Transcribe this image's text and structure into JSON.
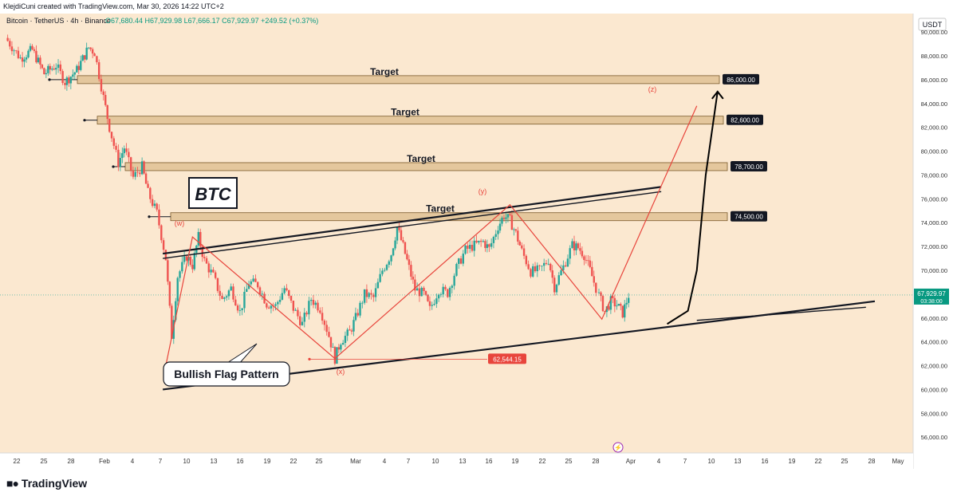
{
  "header": {
    "credit": "KlejdiCuni created with TradingView.com, Mar 30, 2026 14:22 UTC+2",
    "symbol": "Bitcoin · TetherUS · 4h · Binance",
    "ohlc": "O67,680.44 H67,929.98 L67,666.17 C67,929.97 +249.52 (+0.37%)"
  },
  "footer": {
    "brand": "TradingView"
  },
  "chart_data": {
    "type": "candlestick",
    "symbol": "BTCUSDT",
    "timeframe": "4h",
    "currency": "USDT",
    "ylim": [
      55000,
      92000
    ],
    "y_ticks": [
      "56,000.00",
      "58,000.00",
      "60,000.00",
      "62,000.00",
      "64,000.00",
      "66,000.00",
      "68,000.00",
      "70,000.00",
      "72,000.00",
      "74,000.00",
      "76,000.00",
      "78,000.00",
      "80,000.00",
      "82,000.00",
      "84,000.00",
      "86,000.00",
      "88,000.00",
      "90,000.00"
    ],
    "x_ticks": [
      "22",
      "25",
      "28",
      "Feb",
      "4",
      "7",
      "10",
      "13",
      "16",
      "19",
      "22",
      "25",
      "Mar",
      "4",
      "7",
      "10",
      "13",
      "16",
      "19",
      "22",
      "25",
      "28",
      "Apr",
      "4",
      "7",
      "10",
      "13",
      "16",
      "19",
      "22",
      "25",
      "28",
      "May"
    ],
    "last_price": {
      "value": "67,929.97",
      "countdown": "03:38:00",
      "price": 67929.97
    },
    "low_marker": {
      "label": "62,544.15",
      "price": 62544.15
    },
    "target_boxes": [
      {
        "text": "Target",
        "price_label": "86,000.00",
        "price": 86000
      },
      {
        "text": "Target",
        "price_label": "82,600.00",
        "price": 82600
      },
      {
        "text": "Target",
        "price_label": "78,700.00",
        "price": 78700
      },
      {
        "text": "Target",
        "price_label": "74,500.00",
        "price": 74500
      }
    ],
    "wave_labels": [
      "(w)",
      "(x)",
      "(y)",
      "(z)"
    ],
    "annotations": {
      "ticker_box": "BTC",
      "pattern_label": "Bullish Flag Pattern"
    },
    "price_path": [
      [
        0,
        89500
      ],
      [
        5,
        87800
      ],
      [
        9,
        88500
      ],
      [
        13,
        86500
      ],
      [
        17,
        87200
      ],
      [
        20,
        85800
      ],
      [
        24,
        86800
      ],
      [
        28,
        88700
      ],
      [
        30,
        88300
      ],
      [
        33,
        84500
      ],
      [
        35,
        82000
      ],
      [
        38,
        79000
      ],
      [
        40,
        80300
      ],
      [
        43,
        77800
      ],
      [
        46,
        78700
      ],
      [
        48,
        76500
      ],
      [
        51,
        74800
      ],
      [
        54,
        71000
      ],
      [
        56,
        64500
      ],
      [
        58,
        69500
      ],
      [
        61,
        71200
      ],
      [
        63,
        70400
      ],
      [
        65,
        72800
      ],
      [
        67,
        70800
      ],
      [
        70,
        69500
      ],
      [
        73,
        67500
      ],
      [
        76,
        68500
      ],
      [
        79,
        66500
      ],
      [
        82,
        69000
      ],
      [
        85,
        68800
      ],
      [
        88,
        67200
      ],
      [
        91,
        67000
      ],
      [
        94,
        68500
      ],
      [
        97,
        66800
      ],
      [
        100,
        65500
      ],
      [
        103,
        67600
      ],
      [
        106,
        66800
      ],
      [
        109,
        64500
      ],
      [
        111,
        62600
      ],
      [
        113,
        64100
      ],
      [
        116,
        64800
      ],
      [
        118,
        66000
      ],
      [
        121,
        68000
      ],
      [
        124,
        67700
      ],
      [
        127,
        70000
      ],
      [
        130,
        71400
      ],
      [
        132,
        73600
      ],
      [
        134,
        72000
      ],
      [
        136,
        70200
      ],
      [
        138,
        68400
      ],
      [
        141,
        68000
      ],
      [
        143,
        66700
      ],
      [
        146,
        68400
      ],
      [
        149,
        68100
      ],
      [
        152,
        70200
      ],
      [
        155,
        71700
      ],
      [
        158,
        72100
      ],
      [
        161,
        72400
      ],
      [
        163,
        71800
      ],
      [
        166,
        73700
      ],
      [
        168,
        74600
      ],
      [
        170,
        74200
      ],
      [
        172,
        73100
      ],
      [
        174,
        71600
      ],
      [
        177,
        69900
      ],
      [
        180,
        70000
      ],
      [
        183,
        70900
      ],
      [
        185,
        68600
      ],
      [
        188,
        70300
      ],
      [
        191,
        72100
      ],
      [
        193,
        71900
      ],
      [
        195,
        71300
      ],
      [
        197,
        70000
      ],
      [
        199,
        68500
      ],
      [
        200,
        67900
      ],
      [
        202,
        66500
      ],
      [
        204,
        67400
      ],
      [
        206,
        67100
      ],
      [
        208,
        66400
      ],
      [
        210,
        67900
      ]
    ],
    "wave_path": [
      [
        54,
        62000
      ],
      [
        63,
        72800
      ],
      [
        111,
        62600
      ],
      [
        170,
        75500
      ],
      [
        201,
        65900
      ],
      [
        233,
        83800
      ]
    ],
    "flag_upper": [
      [
        53,
        71400
      ],
      [
        221,
        77000
      ]
    ],
    "flag_lower": [
      [
        53,
        60000
      ],
      [
        293,
        67400
      ]
    ],
    "flag_lower_inner": [
      [
        233,
        65800
      ],
      [
        290,
        66900
      ]
    ],
    "projection_arrow": [
      [
        223,
        65500
      ],
      [
        230,
        66600
      ],
      [
        233,
        70000
      ],
      [
        236,
        78000
      ],
      [
        240,
        85000
      ]
    ]
  }
}
